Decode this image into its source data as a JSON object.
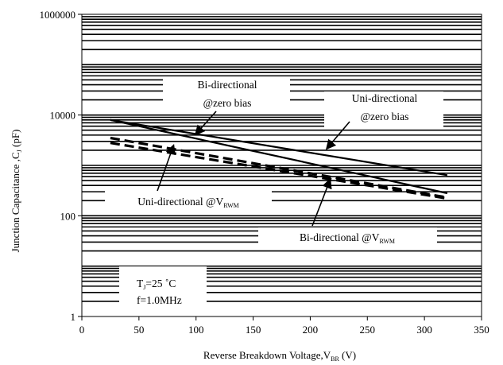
{
  "chart_data": {
    "type": "line",
    "x_axis": {
      "label_main": "Reverse Breakdown  Voltage,V",
      "label_sub": "BR",
      "label_unit": " (V)",
      "range": [
        0,
        350
      ],
      "ticks": [
        0,
        50,
        100,
        150,
        200,
        250,
        300,
        350
      ],
      "tick_labels": [
        "0",
        "50",
        "100",
        "150",
        "200",
        "250",
        "300",
        "350"
      ]
    },
    "y_axis": {
      "label_main": "Junction Capacitance ,C",
      "label_sub": "J",
      "label_unit": " (pF)",
      "scale": "log",
      "range": [
        1,
        1000000
      ],
      "ticks": [
        1,
        100,
        10000,
        1000000
      ],
      "tick_labels": [
        "1",
        "100",
        "10000",
        "1000000"
      ]
    },
    "grid": "horizontal log minor lines (every 1-2-3-4...9 per decade), no vertical grid",
    "series": [
      {
        "name": "Bi-directional @zero bias",
        "style": "solid",
        "points": [
          [
            25,
            8000
          ],
          [
            320,
            280
          ]
        ]
      },
      {
        "name": "Uni-directional @zero bias",
        "style": "solid",
        "points": [
          [
            25,
            8000
          ],
          [
            320,
            640
          ]
        ]
      },
      {
        "name": "Uni-directional @V_RWM",
        "style": "dashed",
        "points": [
          [
            25,
            3500
          ],
          [
            320,
            230
          ]
        ]
      },
      {
        "name": "Bi-directional @V_RWM",
        "style": "dashed",
        "points": [
          [
            25,
            2800
          ],
          [
            320,
            220
          ]
        ]
      }
    ],
    "annotations": [
      {
        "id": "bi-zero",
        "lines": [
          "Bi-directional",
          "@zero  bias"
        ]
      },
      {
        "id": "uni-zero",
        "lines": [
          "Uni-directional",
          "@zero  bias"
        ]
      },
      {
        "id": "uni-rwm",
        "text": "Uni-directional @V",
        "sub": "RWM"
      },
      {
        "id": "bi-rwm",
        "text": "Bi-directional @V",
        "sub": "RWM"
      }
    ],
    "conditions": {
      "line1_a": "T",
      "line1_sub": "J",
      "line1_b": "=25  ˚C",
      "line2": "f=1.0MHz"
    }
  }
}
